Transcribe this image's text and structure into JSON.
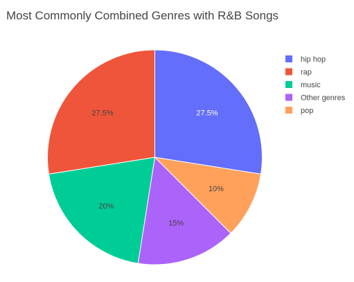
{
  "chart_data": {
    "type": "pie",
    "title": "Most Commonly Combined Genres with R&B Songs",
    "slices": [
      {
        "label": "hip hop",
        "value": 27.5,
        "display": "27.5%",
        "color": "#636efa",
        "text_color": "#ffffff"
      },
      {
        "label": "pop",
        "value": 10,
        "display": "10%",
        "color": "#ffa15a",
        "text_color": "#444444"
      },
      {
        "label": "Other genres",
        "value": 15,
        "display": "15%",
        "color": "#ab63fa",
        "text_color": "#444444"
      },
      {
        "label": "music",
        "value": 20,
        "display": "20%",
        "color": "#00cc96",
        "text_color": "#444444"
      },
      {
        "label": "rap",
        "value": 27.5,
        "display": "27.5%",
        "color": "#ef553b",
        "text_color": "#444444"
      }
    ],
    "legend": {
      "placement": "top-right",
      "order": [
        "hip hop",
        "rap",
        "music",
        "Other genres",
        "pop"
      ]
    },
    "direction": "clockwise",
    "start": "12 o'clock"
  }
}
